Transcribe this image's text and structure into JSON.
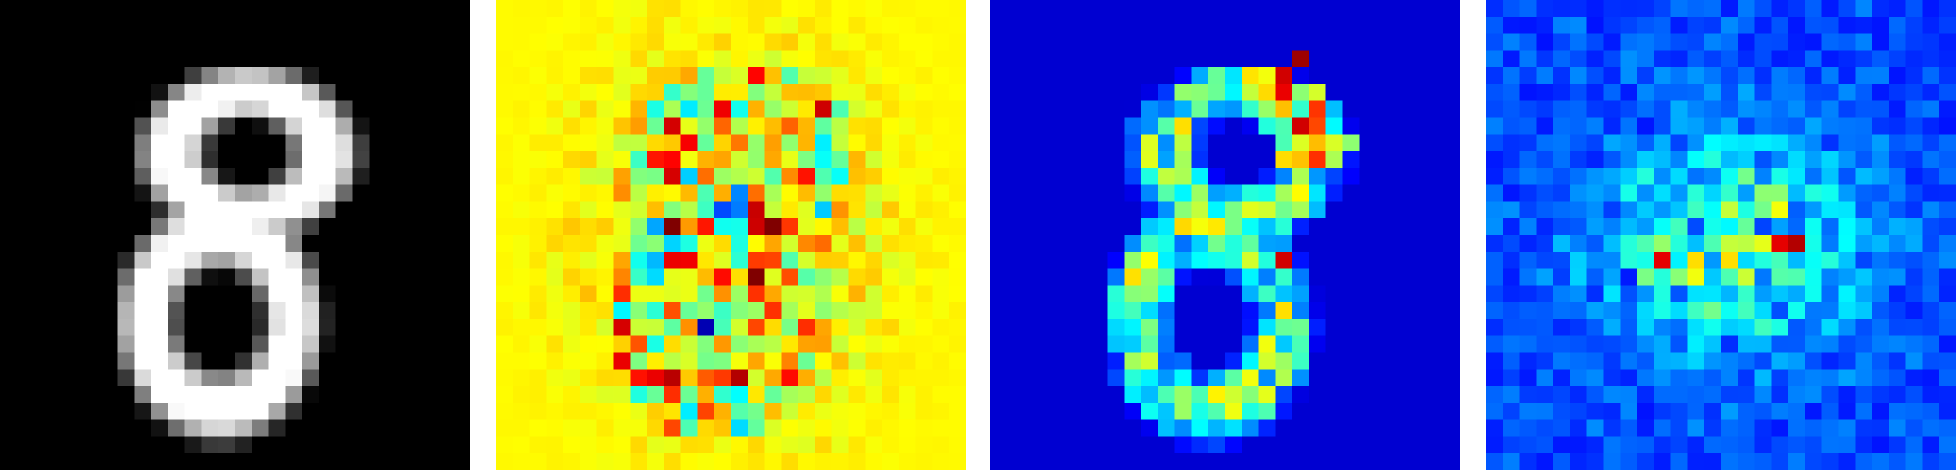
{
  "figure": {
    "panels": [
      {
        "name": "input-digit-image",
        "colormap": "gray",
        "background": "#000000"
      },
      {
        "name": "saliency-map-diverging",
        "colormap": "jet",
        "background": "#55ffaa"
      },
      {
        "name": "positive-attribution-map",
        "colormap": "jet",
        "background": "#00007f"
      },
      {
        "name": "gradient-magnitude-map",
        "colormap": "jet",
        "background": "#0a10c8"
      }
    ]
  }
}
